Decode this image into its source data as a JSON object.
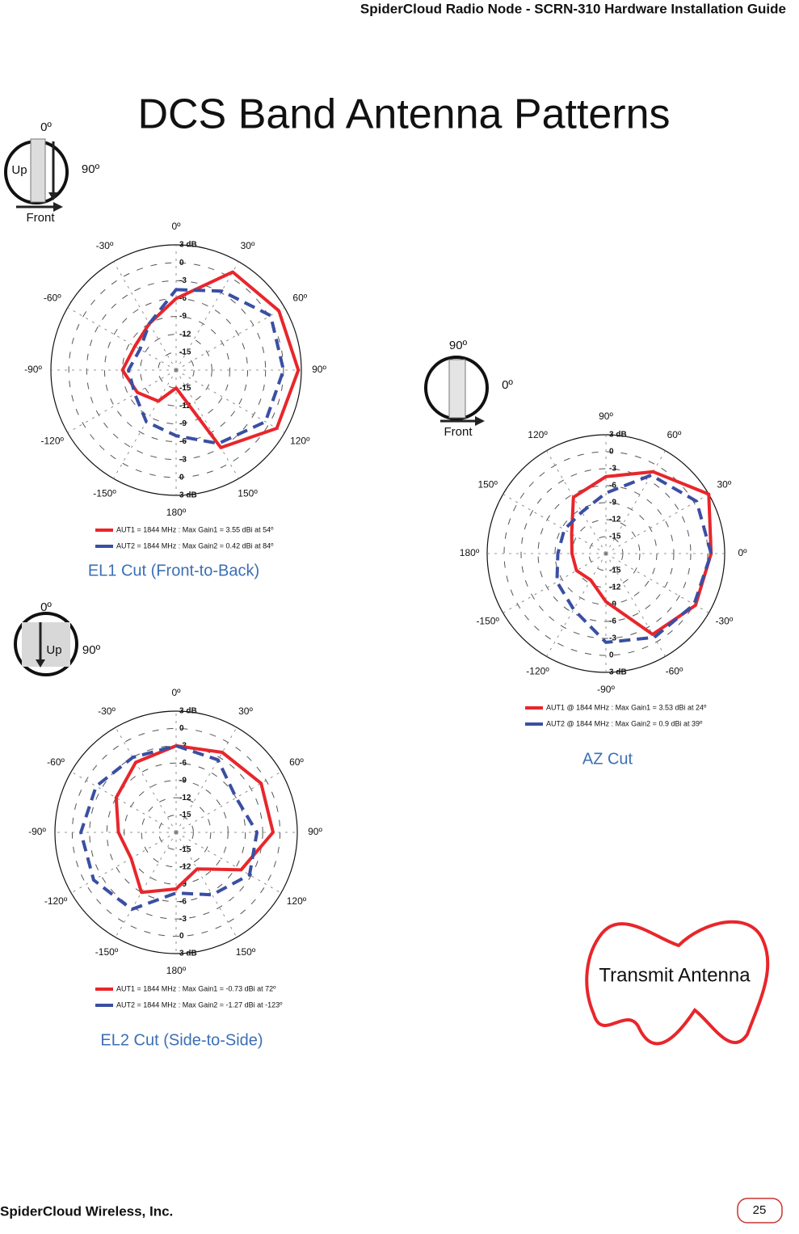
{
  "header": "SpiderCloud Radio Node - SCRN-310 Hardware Installation Guide",
  "title": "DCS Band Antenna Patterns",
  "callout": "Transmit Antenna",
  "footer": {
    "company": "SpiderCloud Wireless, Inc.",
    "page": "25"
  },
  "charts": [
    {
      "type": "polar",
      "caption": "EL1 Cut (Front-to-Back)",
      "icon_labels": [
        "0º",
        "90º",
        "Up",
        "Front"
      ],
      "zero": "top",
      "direction": "clockwise",
      "rlim": [
        -18,
        3
      ],
      "rticks": [
        {
          "value": 3,
          "label": "3 dB"
        },
        0,
        -3,
        -6,
        -9,
        -12,
        -15
      ],
      "angle_ticks": [
        {
          "value": 0,
          "label": "0º"
        },
        {
          "value": 30,
          "label": "30º"
        },
        {
          "value": 60,
          "label": "60º"
        },
        {
          "value": 90,
          "label": "90º"
        },
        {
          "value": 120,
          "label": "120º"
        },
        {
          "value": 150,
          "label": "150º"
        },
        {
          "value": 180,
          "label": "180º"
        },
        {
          "value": -150,
          "label": "-150º"
        },
        {
          "value": -120,
          "label": "-120º"
        },
        {
          "value": -90,
          "label": "-90º"
        },
        {
          "value": -60,
          "label": "-60º"
        },
        {
          "value": -30,
          "label": "-30º"
        }
      ],
      "angles": [
        0,
        30,
        60,
        90,
        120,
        150,
        180,
        -150,
        -120,
        -90,
        -60,
        -30
      ],
      "series": [
        {
          "name": "AUT1 = 1844 MHz : Max Gain1 = 3.55 dBi at 54º",
          "color": "#e8262b",
          "dashed": false,
          "values": [
            -6,
            1,
            1.9,
            2.5,
            1.5,
            -3,
            -15,
            -12,
            -10.5,
            -9,
            -10,
            -9
          ]
        },
        {
          "name": "AUT2 = 1844 MHz : Max Gain2 = 0.42 dBi at 84º",
          "color": "#3a4fa3",
          "dashed": true,
          "values": [
            -4.5,
            -2.7,
            0.3,
            0,
            -0.7,
            -3.8,
            -7,
            -8,
            -10,
            -10,
            -11,
            -9
          ]
        }
      ]
    },
    {
      "type": "polar",
      "caption": "AZ Cut",
      "icon_labels": [
        "90º",
        "0º",
        "Front"
      ],
      "zero": "right",
      "direction": "counterclockwise",
      "rlim": [
        -18,
        3
      ],
      "rticks": [
        {
          "value": 3,
          "label": "3 dB"
        },
        0,
        -3,
        -6,
        -9,
        -12,
        -15
      ],
      "angle_ticks": [
        {
          "value": 0,
          "label": "0º"
        },
        {
          "value": 30,
          "label": "30º"
        },
        {
          "value": 60,
          "label": "60º"
        },
        {
          "value": 90,
          "label": "90º"
        },
        {
          "value": 120,
          "label": "120º"
        },
        {
          "value": 150,
          "label": "150º"
        },
        {
          "value": 180,
          "label": "180º"
        },
        {
          "value": -150,
          "label": "-150º"
        },
        {
          "value": -120,
          "label": "-120º"
        },
        {
          "value": -90,
          "label": "-90º"
        },
        {
          "value": -60,
          "label": "-60º"
        },
        {
          "value": -30,
          "label": "-30º"
        }
      ],
      "angles": [
        0,
        30,
        60,
        90,
        120,
        150,
        180,
        -150,
        -120,
        -90,
        -60,
        -30
      ],
      "series": [
        {
          "name": "AUT1 @ 1844 MHz : Max Gain1 = 3.53 dBi at 24º",
          "color": "#e8262b",
          "dashed": false,
          "values": [
            0.6,
            3,
            -1.3,
            -4.4,
            -6.5,
            -11,
            -12,
            -12,
            -12.6,
            -9.5,
            -1.5,
            0.3
          ]
        },
        {
          "name": "AUT2 @ 1844 MHz : Max Gain2 = 0.9 dBi at 39º",
          "color": "#3a4fa3",
          "dashed": true,
          "values": [
            0.6,
            0.5,
            -2,
            -7.3,
            -9.5,
            -9.5,
            -9.5,
            -8,
            -6.6,
            -2.3,
            -0.9,
            0
          ]
        }
      ]
    },
    {
      "type": "polar",
      "caption": "EL2 Cut (Side-to-Side)",
      "icon_labels": [
        "0º",
        "Up",
        "90º"
      ],
      "zero": "top",
      "direction": "clockwise",
      "rlim": [
        -18,
        3
      ],
      "rticks": [
        {
          "value": 3,
          "label": "3 dB"
        },
        0,
        -3,
        -6,
        -9,
        -12,
        -15
      ],
      "angle_ticks": [
        {
          "value": 0,
          "label": "0º"
        },
        {
          "value": 30,
          "label": "30º"
        },
        {
          "value": 60,
          "label": "60º"
        },
        {
          "value": 90,
          "label": "90º"
        },
        {
          "value": 120,
          "label": "120º"
        },
        {
          "value": 150,
          "label": "150º"
        },
        {
          "value": 180,
          "label": "180º"
        },
        {
          "value": -150,
          "label": "-150º"
        },
        {
          "value": -120,
          "label": "-120º"
        },
        {
          "value": -90,
          "label": "-90º"
        },
        {
          "value": -60,
          "label": "-60º"
        },
        {
          "value": -30,
          "label": "-30º"
        }
      ],
      "angles": [
        0,
        30,
        60,
        90,
        120,
        150,
        180,
        -150,
        -120,
        -90,
        -60,
        -30
      ],
      "series": [
        {
          "name": "AUT1 = 1844 MHz : Max Gain1 = -0.73 dBi at 72º",
          "color": "#e8262b",
          "dashed": false,
          "values": [
            -3,
            -2,
            -1,
            -1.2,
            -5,
            -10.7,
            -8.2,
            -6,
            -9,
            -8,
            -6,
            -4
          ]
        },
        {
          "name": "AUT2 = 1844 MHz : Max Gain2 = -1.27 dBi at -123º",
          "color": "#3a4fa3",
          "dashed": true,
          "values": [
            -3,
            -3.5,
            -6,
            -4,
            -3.3,
            -5.5,
            -7.5,
            -2.6,
            -1.5,
            -1.5,
            -2,
            -3
          ]
        }
      ]
    }
  ]
}
